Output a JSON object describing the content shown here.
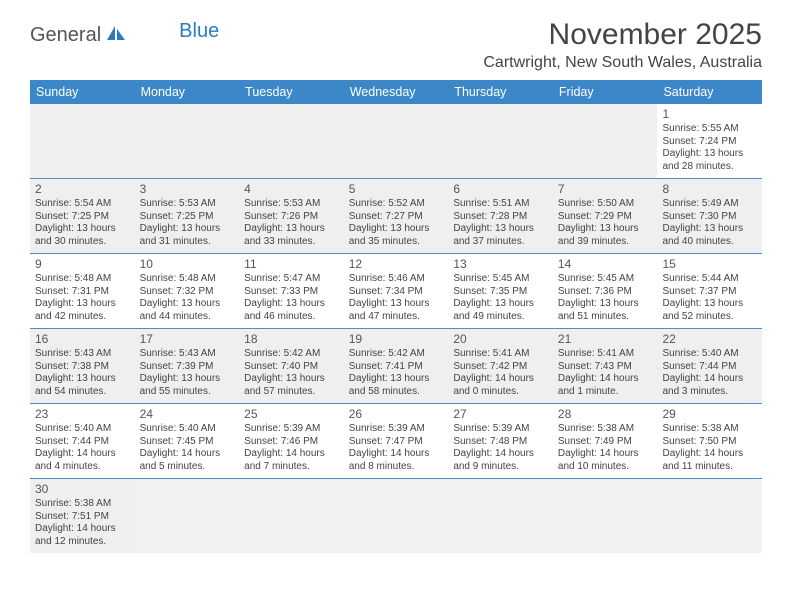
{
  "logo": {
    "text1": "General",
    "text2": "Blue"
  },
  "title": "November 2025",
  "location": "Cartwright, New South Wales, Australia",
  "colors": {
    "header_bg": "#3b87c8",
    "header_text": "#ffffff",
    "rule": "#4a8fc7",
    "shade": "#efefef",
    "body_text": "#444444"
  },
  "dayNames": [
    "Sunday",
    "Monday",
    "Tuesday",
    "Wednesday",
    "Thursday",
    "Friday",
    "Saturday"
  ],
  "weeks": [
    [
      null,
      null,
      null,
      null,
      null,
      null,
      {
        "n": "1",
        "sr": "Sunrise: 5:55 AM",
        "ss": "Sunset: 7:24 PM",
        "dl": "Daylight: 13 hours and 28 minutes."
      }
    ],
    [
      {
        "n": "2",
        "sr": "Sunrise: 5:54 AM",
        "ss": "Sunset: 7:25 PM",
        "dl": "Daylight: 13 hours and 30 minutes."
      },
      {
        "n": "3",
        "sr": "Sunrise: 5:53 AM",
        "ss": "Sunset: 7:25 PM",
        "dl": "Daylight: 13 hours and 31 minutes."
      },
      {
        "n": "4",
        "sr": "Sunrise: 5:53 AM",
        "ss": "Sunset: 7:26 PM",
        "dl": "Daylight: 13 hours and 33 minutes."
      },
      {
        "n": "5",
        "sr": "Sunrise: 5:52 AM",
        "ss": "Sunset: 7:27 PM",
        "dl": "Daylight: 13 hours and 35 minutes."
      },
      {
        "n": "6",
        "sr": "Sunrise: 5:51 AM",
        "ss": "Sunset: 7:28 PM",
        "dl": "Daylight: 13 hours and 37 minutes."
      },
      {
        "n": "7",
        "sr": "Sunrise: 5:50 AM",
        "ss": "Sunset: 7:29 PM",
        "dl": "Daylight: 13 hours and 39 minutes."
      },
      {
        "n": "8",
        "sr": "Sunrise: 5:49 AM",
        "ss": "Sunset: 7:30 PM",
        "dl": "Daylight: 13 hours and 40 minutes."
      }
    ],
    [
      {
        "n": "9",
        "sr": "Sunrise: 5:48 AM",
        "ss": "Sunset: 7:31 PM",
        "dl": "Daylight: 13 hours and 42 minutes."
      },
      {
        "n": "10",
        "sr": "Sunrise: 5:48 AM",
        "ss": "Sunset: 7:32 PM",
        "dl": "Daylight: 13 hours and 44 minutes."
      },
      {
        "n": "11",
        "sr": "Sunrise: 5:47 AM",
        "ss": "Sunset: 7:33 PM",
        "dl": "Daylight: 13 hours and 46 minutes."
      },
      {
        "n": "12",
        "sr": "Sunrise: 5:46 AM",
        "ss": "Sunset: 7:34 PM",
        "dl": "Daylight: 13 hours and 47 minutes."
      },
      {
        "n": "13",
        "sr": "Sunrise: 5:45 AM",
        "ss": "Sunset: 7:35 PM",
        "dl": "Daylight: 13 hours and 49 minutes."
      },
      {
        "n": "14",
        "sr": "Sunrise: 5:45 AM",
        "ss": "Sunset: 7:36 PM",
        "dl": "Daylight: 13 hours and 51 minutes."
      },
      {
        "n": "15",
        "sr": "Sunrise: 5:44 AM",
        "ss": "Sunset: 7:37 PM",
        "dl": "Daylight: 13 hours and 52 minutes."
      }
    ],
    [
      {
        "n": "16",
        "sr": "Sunrise: 5:43 AM",
        "ss": "Sunset: 7:38 PM",
        "dl": "Daylight: 13 hours and 54 minutes."
      },
      {
        "n": "17",
        "sr": "Sunrise: 5:43 AM",
        "ss": "Sunset: 7:39 PM",
        "dl": "Daylight: 13 hours and 55 minutes."
      },
      {
        "n": "18",
        "sr": "Sunrise: 5:42 AM",
        "ss": "Sunset: 7:40 PM",
        "dl": "Daylight: 13 hours and 57 minutes."
      },
      {
        "n": "19",
        "sr": "Sunrise: 5:42 AM",
        "ss": "Sunset: 7:41 PM",
        "dl": "Daylight: 13 hours and 58 minutes."
      },
      {
        "n": "20",
        "sr": "Sunrise: 5:41 AM",
        "ss": "Sunset: 7:42 PM",
        "dl": "Daylight: 14 hours and 0 minutes."
      },
      {
        "n": "21",
        "sr": "Sunrise: 5:41 AM",
        "ss": "Sunset: 7:43 PM",
        "dl": "Daylight: 14 hours and 1 minute."
      },
      {
        "n": "22",
        "sr": "Sunrise: 5:40 AM",
        "ss": "Sunset: 7:44 PM",
        "dl": "Daylight: 14 hours and 3 minutes."
      }
    ],
    [
      {
        "n": "23",
        "sr": "Sunrise: 5:40 AM",
        "ss": "Sunset: 7:44 PM",
        "dl": "Daylight: 14 hours and 4 minutes."
      },
      {
        "n": "24",
        "sr": "Sunrise: 5:40 AM",
        "ss": "Sunset: 7:45 PM",
        "dl": "Daylight: 14 hours and 5 minutes."
      },
      {
        "n": "25",
        "sr": "Sunrise: 5:39 AM",
        "ss": "Sunset: 7:46 PM",
        "dl": "Daylight: 14 hours and 7 minutes."
      },
      {
        "n": "26",
        "sr": "Sunrise: 5:39 AM",
        "ss": "Sunset: 7:47 PM",
        "dl": "Daylight: 14 hours and 8 minutes."
      },
      {
        "n": "27",
        "sr": "Sunrise: 5:39 AM",
        "ss": "Sunset: 7:48 PM",
        "dl": "Daylight: 14 hours and 9 minutes."
      },
      {
        "n": "28",
        "sr": "Sunrise: 5:38 AM",
        "ss": "Sunset: 7:49 PM",
        "dl": "Daylight: 14 hours and 10 minutes."
      },
      {
        "n": "29",
        "sr": "Sunrise: 5:38 AM",
        "ss": "Sunset: 7:50 PM",
        "dl": "Daylight: 14 hours and 11 minutes."
      }
    ],
    [
      {
        "n": "30",
        "sr": "Sunrise: 5:38 AM",
        "ss": "Sunset: 7:51 PM",
        "dl": "Daylight: 14 hours and 12 minutes."
      },
      null,
      null,
      null,
      null,
      null,
      null
    ]
  ]
}
